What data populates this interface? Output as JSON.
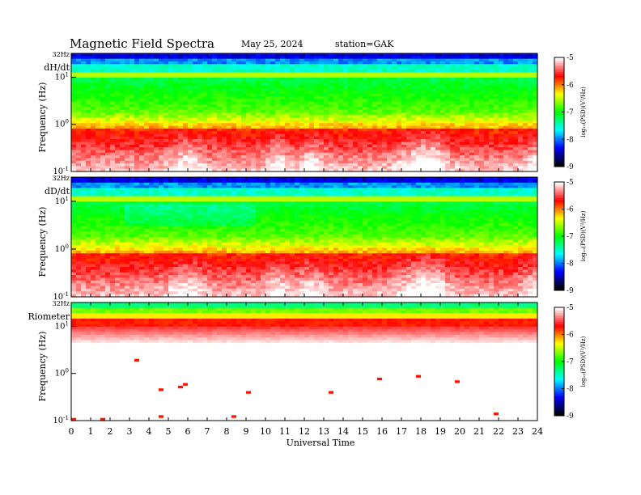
{
  "header": {
    "title": "Magnetic  Field  Spectra",
    "date": "May 25, 2024",
    "station": "station=GAK"
  },
  "chart_data": [
    {
      "type": "heatmap",
      "panel_label": "dH/dt",
      "ylabel": "Frequency  (Hz)",
      "top_freq_label": "32Hz",
      "y_ticks": [
        {
          "base": "10",
          "exp": "1"
        },
        {
          "base": "10",
          "exp": "0"
        },
        {
          "base": "10",
          "exp": "-1"
        }
      ],
      "xlim": [
        0,
        24
      ],
      "ylim_hz": [
        0.1,
        32
      ],
      "colorbar": {
        "label": "log₁₀(PSD)(V²/Hz)",
        "ticks": [
          "-5",
          "-6",
          "-7",
          "-8",
          "-9"
        ],
        "range": [
          -9,
          -5
        ]
      },
      "colormap": [
        "#000000",
        "#0000ff",
        "#00ffff",
        "#00ff00",
        "#ffff00",
        "#ff0000",
        "#ffffff"
      ]
    },
    {
      "type": "heatmap",
      "panel_label": "dD/dt",
      "ylabel": "Frequency  (Hz)",
      "top_freq_label": "32Hz",
      "y_ticks": [
        {
          "base": "10",
          "exp": "1"
        },
        {
          "base": "10",
          "exp": "0"
        },
        {
          "base": "10",
          "exp": "-1"
        }
      ],
      "xlim": [
        0,
        24
      ],
      "ylim_hz": [
        0.1,
        32
      ],
      "colorbar": {
        "label": "log₁₀(PSD)(V²/Hz)",
        "ticks": [
          "-5",
          "-6",
          "-7",
          "-8",
          "-9"
        ],
        "range": [
          -9,
          -5
        ]
      },
      "colormap": [
        "#000000",
        "#0000ff",
        "#00ffff",
        "#00ff00",
        "#ffff00",
        "#ff0000",
        "#ffffff"
      ]
    },
    {
      "type": "heatmap",
      "panel_label": "Riometer",
      "ylabel": "Frequency  (Hz)",
      "top_freq_label": "32Hz",
      "y_ticks": [
        {
          "base": "10",
          "exp": "1"
        },
        {
          "base": "10",
          "exp": "0"
        },
        {
          "base": "10",
          "exp": "-1"
        }
      ],
      "xlim": [
        0,
        24
      ],
      "ylim_hz": [
        0.1,
        32
      ],
      "colorbar": {
        "label": "log₁₀(PSD)(V²/Hz)",
        "ticks": [
          "-5",
          "-6",
          "-7",
          "-8",
          "-9"
        ],
        "range": [
          -9,
          -5
        ]
      },
      "colormap": [
        "#000000",
        "#0000ff",
        "#00ffff",
        "#00ff00",
        "#ffff00",
        "#ff0000",
        "#ffffff"
      ]
    }
  ],
  "x_axis": {
    "label": "Universal Time",
    "ticks": [
      "0",
      "1",
      "2",
      "3",
      "4",
      "5",
      "6",
      "7",
      "8",
      "9",
      "10",
      "11",
      "12",
      "13",
      "14",
      "15",
      "16",
      "17",
      "18",
      "19",
      "20",
      "21",
      "22",
      "23",
      "24"
    ]
  }
}
